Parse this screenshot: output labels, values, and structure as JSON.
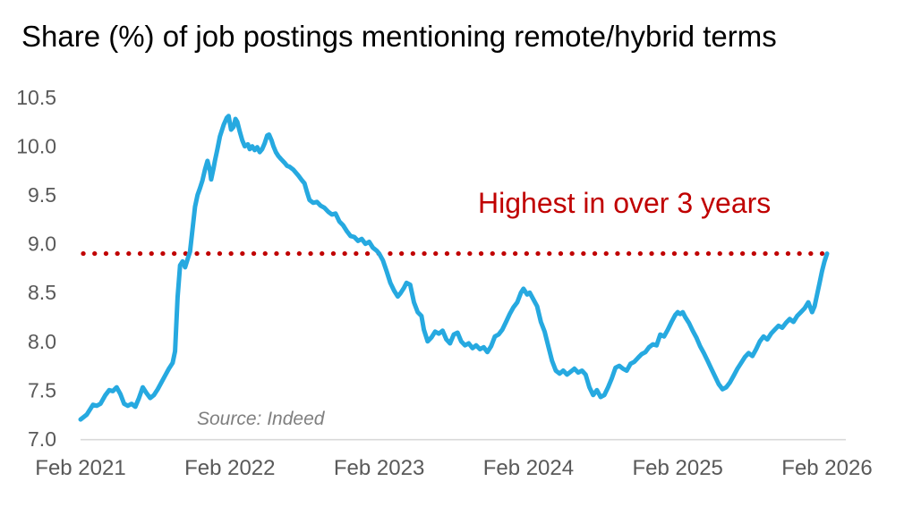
{
  "title": "Share (%) of job postings mentioning remote/hybrid terms",
  "annotation": {
    "text": "Highest in over 3 years"
  },
  "source_note": "Source: Indeed",
  "reference_line": {
    "value": 8.9,
    "style": "dotted"
  },
  "colors": {
    "title": "#000000",
    "axis_labels": "#595959",
    "source": "#7f7f7f",
    "line": "#26A9E0",
    "reference": "#C00000",
    "annotation": "#C00000",
    "axis_line": "#D9D9D9",
    "background": "#ffffff"
  },
  "chart_data": {
    "type": "line",
    "title": "Share (%) of job postings mentioning remote/hybrid terms",
    "xlabel": "",
    "ylabel": "",
    "ylim": [
      7.0,
      10.5
    ],
    "y_ticks": [
      7.0,
      7.5,
      8.0,
      8.5,
      9.0,
      9.5,
      10.0,
      10.5
    ],
    "y_tick_format_decimals": 1,
    "x_range_months": [
      0,
      60
    ],
    "x_ticks_months": [
      0,
      12,
      24,
      36,
      48,
      60
    ],
    "x_tick_labels": [
      "Feb 2021",
      "Feb 2022",
      "Feb 2023",
      "Feb 2024",
      "Feb 2025",
      "Feb 2026"
    ],
    "grid": false,
    "legend": "none",
    "annotations": [
      {
        "text": "Highest in over 3 years",
        "color": "#C00000"
      },
      {
        "type": "hline",
        "value": 8.9,
        "style": "dotted",
        "color": "#C00000"
      }
    ],
    "series": [
      {
        "name": "Share of job postings mentioning remote/hybrid terms",
        "x_unit": "months since Feb 2021",
        "points": [
          [
            0,
            7.2
          ],
          [
            0.5,
            7.25
          ],
          [
            1,
            7.35
          ],
          [
            1.3,
            7.34
          ],
          [
            1.6,
            7.36
          ],
          [
            2,
            7.45
          ],
          [
            2.3,
            7.5
          ],
          [
            2.6,
            7.49
          ],
          [
            2.9,
            7.53
          ],
          [
            3.2,
            7.46
          ],
          [
            3.5,
            7.36
          ],
          [
            3.8,
            7.34
          ],
          [
            4.1,
            7.36
          ],
          [
            4.4,
            7.33
          ],
          [
            4.7,
            7.42
          ],
          [
            5,
            7.53
          ],
          [
            5.3,
            7.47
          ],
          [
            5.6,
            7.42
          ],
          [
            5.9,
            7.45
          ],
          [
            6.2,
            7.51
          ],
          [
            6.5,
            7.58
          ],
          [
            6.8,
            7.65
          ],
          [
            7.1,
            7.72
          ],
          [
            7.4,
            7.78
          ],
          [
            7.6,
            7.9
          ],
          [
            7.8,
            8.45
          ],
          [
            8,
            8.78
          ],
          [
            8.2,
            8.82
          ],
          [
            8.4,
            8.76
          ],
          [
            8.6,
            8.84
          ],
          [
            8.8,
            8.92
          ],
          [
            9,
            9.15
          ],
          [
            9.2,
            9.38
          ],
          [
            9.4,
            9.5
          ],
          [
            9.6,
            9.57
          ],
          [
            9.8,
            9.65
          ],
          [
            10,
            9.76
          ],
          [
            10.2,
            9.85
          ],
          [
            10.4,
            9.75
          ],
          [
            10.5,
            9.66
          ],
          [
            10.7,
            9.78
          ],
          [
            10.8,
            9.85
          ],
          [
            11,
            9.97
          ],
          [
            11.2,
            10.1
          ],
          [
            11.5,
            10.22
          ],
          [
            11.75,
            10.29
          ],
          [
            11.9,
            10.31
          ],
          [
            12.1,
            10.17
          ],
          [
            12.3,
            10.2
          ],
          [
            12.45,
            10.28
          ],
          [
            12.6,
            10.25
          ],
          [
            12.8,
            10.15
          ],
          [
            13,
            10.06
          ],
          [
            13.2,
            10.0
          ],
          [
            13.45,
            10.02
          ],
          [
            13.6,
            9.97
          ],
          [
            13.8,
            10.0
          ],
          [
            14,
            9.96
          ],
          [
            14.2,
            9.99
          ],
          [
            14.4,
            9.94
          ],
          [
            14.6,
            9.97
          ],
          [
            14.8,
            10.03
          ],
          [
            15,
            10.11
          ],
          [
            15.15,
            10.12
          ],
          [
            15.35,
            10.06
          ],
          [
            15.5,
            10.0
          ],
          [
            15.7,
            9.94
          ],
          [
            15.9,
            9.9
          ],
          [
            16.1,
            9.87
          ],
          [
            16.4,
            9.83
          ],
          [
            16.6,
            9.8
          ],
          [
            16.8,
            9.79
          ],
          [
            17.1,
            9.76
          ],
          [
            17.3,
            9.73
          ],
          [
            17.5,
            9.7
          ],
          [
            17.8,
            9.65
          ],
          [
            18,
            9.62
          ],
          [
            18.2,
            9.53
          ],
          [
            18.4,
            9.45
          ],
          [
            18.7,
            9.42
          ],
          [
            19,
            9.43
          ],
          [
            19.3,
            9.39
          ],
          [
            19.6,
            9.37
          ],
          [
            19.9,
            9.33
          ],
          [
            20.2,
            9.3
          ],
          [
            20.5,
            9.31
          ],
          [
            20.8,
            9.23
          ],
          [
            21.1,
            9.19
          ],
          [
            21.4,
            9.13
          ],
          [
            21.7,
            9.08
          ],
          [
            22,
            9.07
          ],
          [
            22.3,
            9.03
          ],
          [
            22.6,
            9.05
          ],
          [
            22.9,
            9.0
          ],
          [
            23.2,
            9.02
          ],
          [
            23.5,
            8.96
          ],
          [
            23.8,
            8.93
          ],
          [
            24,
            8.9
          ],
          [
            24.3,
            8.83
          ],
          [
            24.6,
            8.72
          ],
          [
            24.9,
            8.6
          ],
          [
            25.2,
            8.52
          ],
          [
            25.5,
            8.46
          ],
          [
            25.7,
            8.49
          ],
          [
            26,
            8.55
          ],
          [
            26.2,
            8.6
          ],
          [
            26.5,
            8.58
          ],
          [
            26.8,
            8.4
          ],
          [
            27.1,
            8.3
          ],
          [
            27.4,
            8.26
          ],
          [
            27.6,
            8.12
          ],
          [
            27.9,
            8.0
          ],
          [
            28.2,
            8.04
          ],
          [
            28.5,
            8.1
          ],
          [
            28.8,
            8.08
          ],
          [
            29.1,
            8.11
          ],
          [
            29.4,
            8.02
          ],
          [
            29.7,
            7.98
          ],
          [
            30,
            8.07
          ],
          [
            30.3,
            8.09
          ],
          [
            30.6,
            8.0
          ],
          [
            30.9,
            7.96
          ],
          [
            31.2,
            7.98
          ],
          [
            31.5,
            7.93
          ],
          [
            31.8,
            7.96
          ],
          [
            32.1,
            7.92
          ],
          [
            32.4,
            7.94
          ],
          [
            32.7,
            7.89
          ],
          [
            33,
            7.95
          ],
          [
            33.3,
            8.05
          ],
          [
            33.6,
            8.07
          ],
          [
            33.9,
            8.12
          ],
          [
            34.2,
            8.2
          ],
          [
            34.5,
            8.28
          ],
          [
            34.8,
            8.35
          ],
          [
            35.1,
            8.4
          ],
          [
            35.4,
            8.5
          ],
          [
            35.6,
            8.54
          ],
          [
            35.9,
            8.48
          ],
          [
            36.1,
            8.5
          ],
          [
            36.4,
            8.43
          ],
          [
            36.7,
            8.36
          ],
          [
            37,
            8.2
          ],
          [
            37.3,
            8.1
          ],
          [
            37.6,
            7.95
          ],
          [
            37.9,
            7.8
          ],
          [
            38.2,
            7.7
          ],
          [
            38.5,
            7.67
          ],
          [
            38.8,
            7.7
          ],
          [
            39.1,
            7.66
          ],
          [
            39.4,
            7.69
          ],
          [
            39.7,
            7.72
          ],
          [
            40,
            7.68
          ],
          [
            40.3,
            7.7
          ],
          [
            40.6,
            7.66
          ],
          [
            40.9,
            7.53
          ],
          [
            41.2,
            7.45
          ],
          [
            41.5,
            7.5
          ],
          [
            41.8,
            7.43
          ],
          [
            42.1,
            7.45
          ],
          [
            42.4,
            7.53
          ],
          [
            42.7,
            7.62
          ],
          [
            43,
            7.73
          ],
          [
            43.3,
            7.75
          ],
          [
            43.6,
            7.72
          ],
          [
            43.9,
            7.7
          ],
          [
            44.2,
            7.77
          ],
          [
            44.5,
            7.79
          ],
          [
            44.8,
            7.83
          ],
          [
            45.1,
            7.87
          ],
          [
            45.4,
            7.89
          ],
          [
            45.7,
            7.94
          ],
          [
            46,
            7.97
          ],
          [
            46.3,
            7.96
          ],
          [
            46.6,
            8.07
          ],
          [
            46.9,
            8.05
          ],
          [
            47.2,
            8.12
          ],
          [
            47.5,
            8.2
          ],
          [
            47.8,
            8.27
          ],
          [
            48,
            8.3
          ],
          [
            48.2,
            8.28
          ],
          [
            48.4,
            8.3
          ],
          [
            48.6,
            8.25
          ],
          [
            48.9,
            8.19
          ],
          [
            49.2,
            8.11
          ],
          [
            49.5,
            8.04
          ],
          [
            49.8,
            7.95
          ],
          [
            50.1,
            7.88
          ],
          [
            50.4,
            7.8
          ],
          [
            50.7,
            7.72
          ],
          [
            51,
            7.64
          ],
          [
            51.3,
            7.56
          ],
          [
            51.6,
            7.51
          ],
          [
            51.9,
            7.53
          ],
          [
            52.2,
            7.58
          ],
          [
            52.5,
            7.65
          ],
          [
            52.8,
            7.72
          ],
          [
            53.1,
            7.78
          ],
          [
            53.4,
            7.84
          ],
          [
            53.7,
            7.88
          ],
          [
            54,
            7.85
          ],
          [
            54.3,
            7.92
          ],
          [
            54.6,
            8.0
          ],
          [
            54.9,
            8.05
          ],
          [
            55.2,
            8.02
          ],
          [
            55.5,
            8.08
          ],
          [
            55.8,
            8.12
          ],
          [
            56.1,
            8.16
          ],
          [
            56.4,
            8.14
          ],
          [
            56.7,
            8.19
          ],
          [
            57,
            8.23
          ],
          [
            57.3,
            8.2
          ],
          [
            57.6,
            8.26
          ],
          [
            57.9,
            8.3
          ],
          [
            58.2,
            8.34
          ],
          [
            58.5,
            8.4
          ],
          [
            58.8,
            8.3
          ],
          [
            59,
            8.36
          ],
          [
            59.2,
            8.48
          ],
          [
            59.4,
            8.6
          ],
          [
            59.6,
            8.72
          ],
          [
            59.8,
            8.82
          ],
          [
            60,
            8.9
          ]
        ]
      }
    ]
  }
}
